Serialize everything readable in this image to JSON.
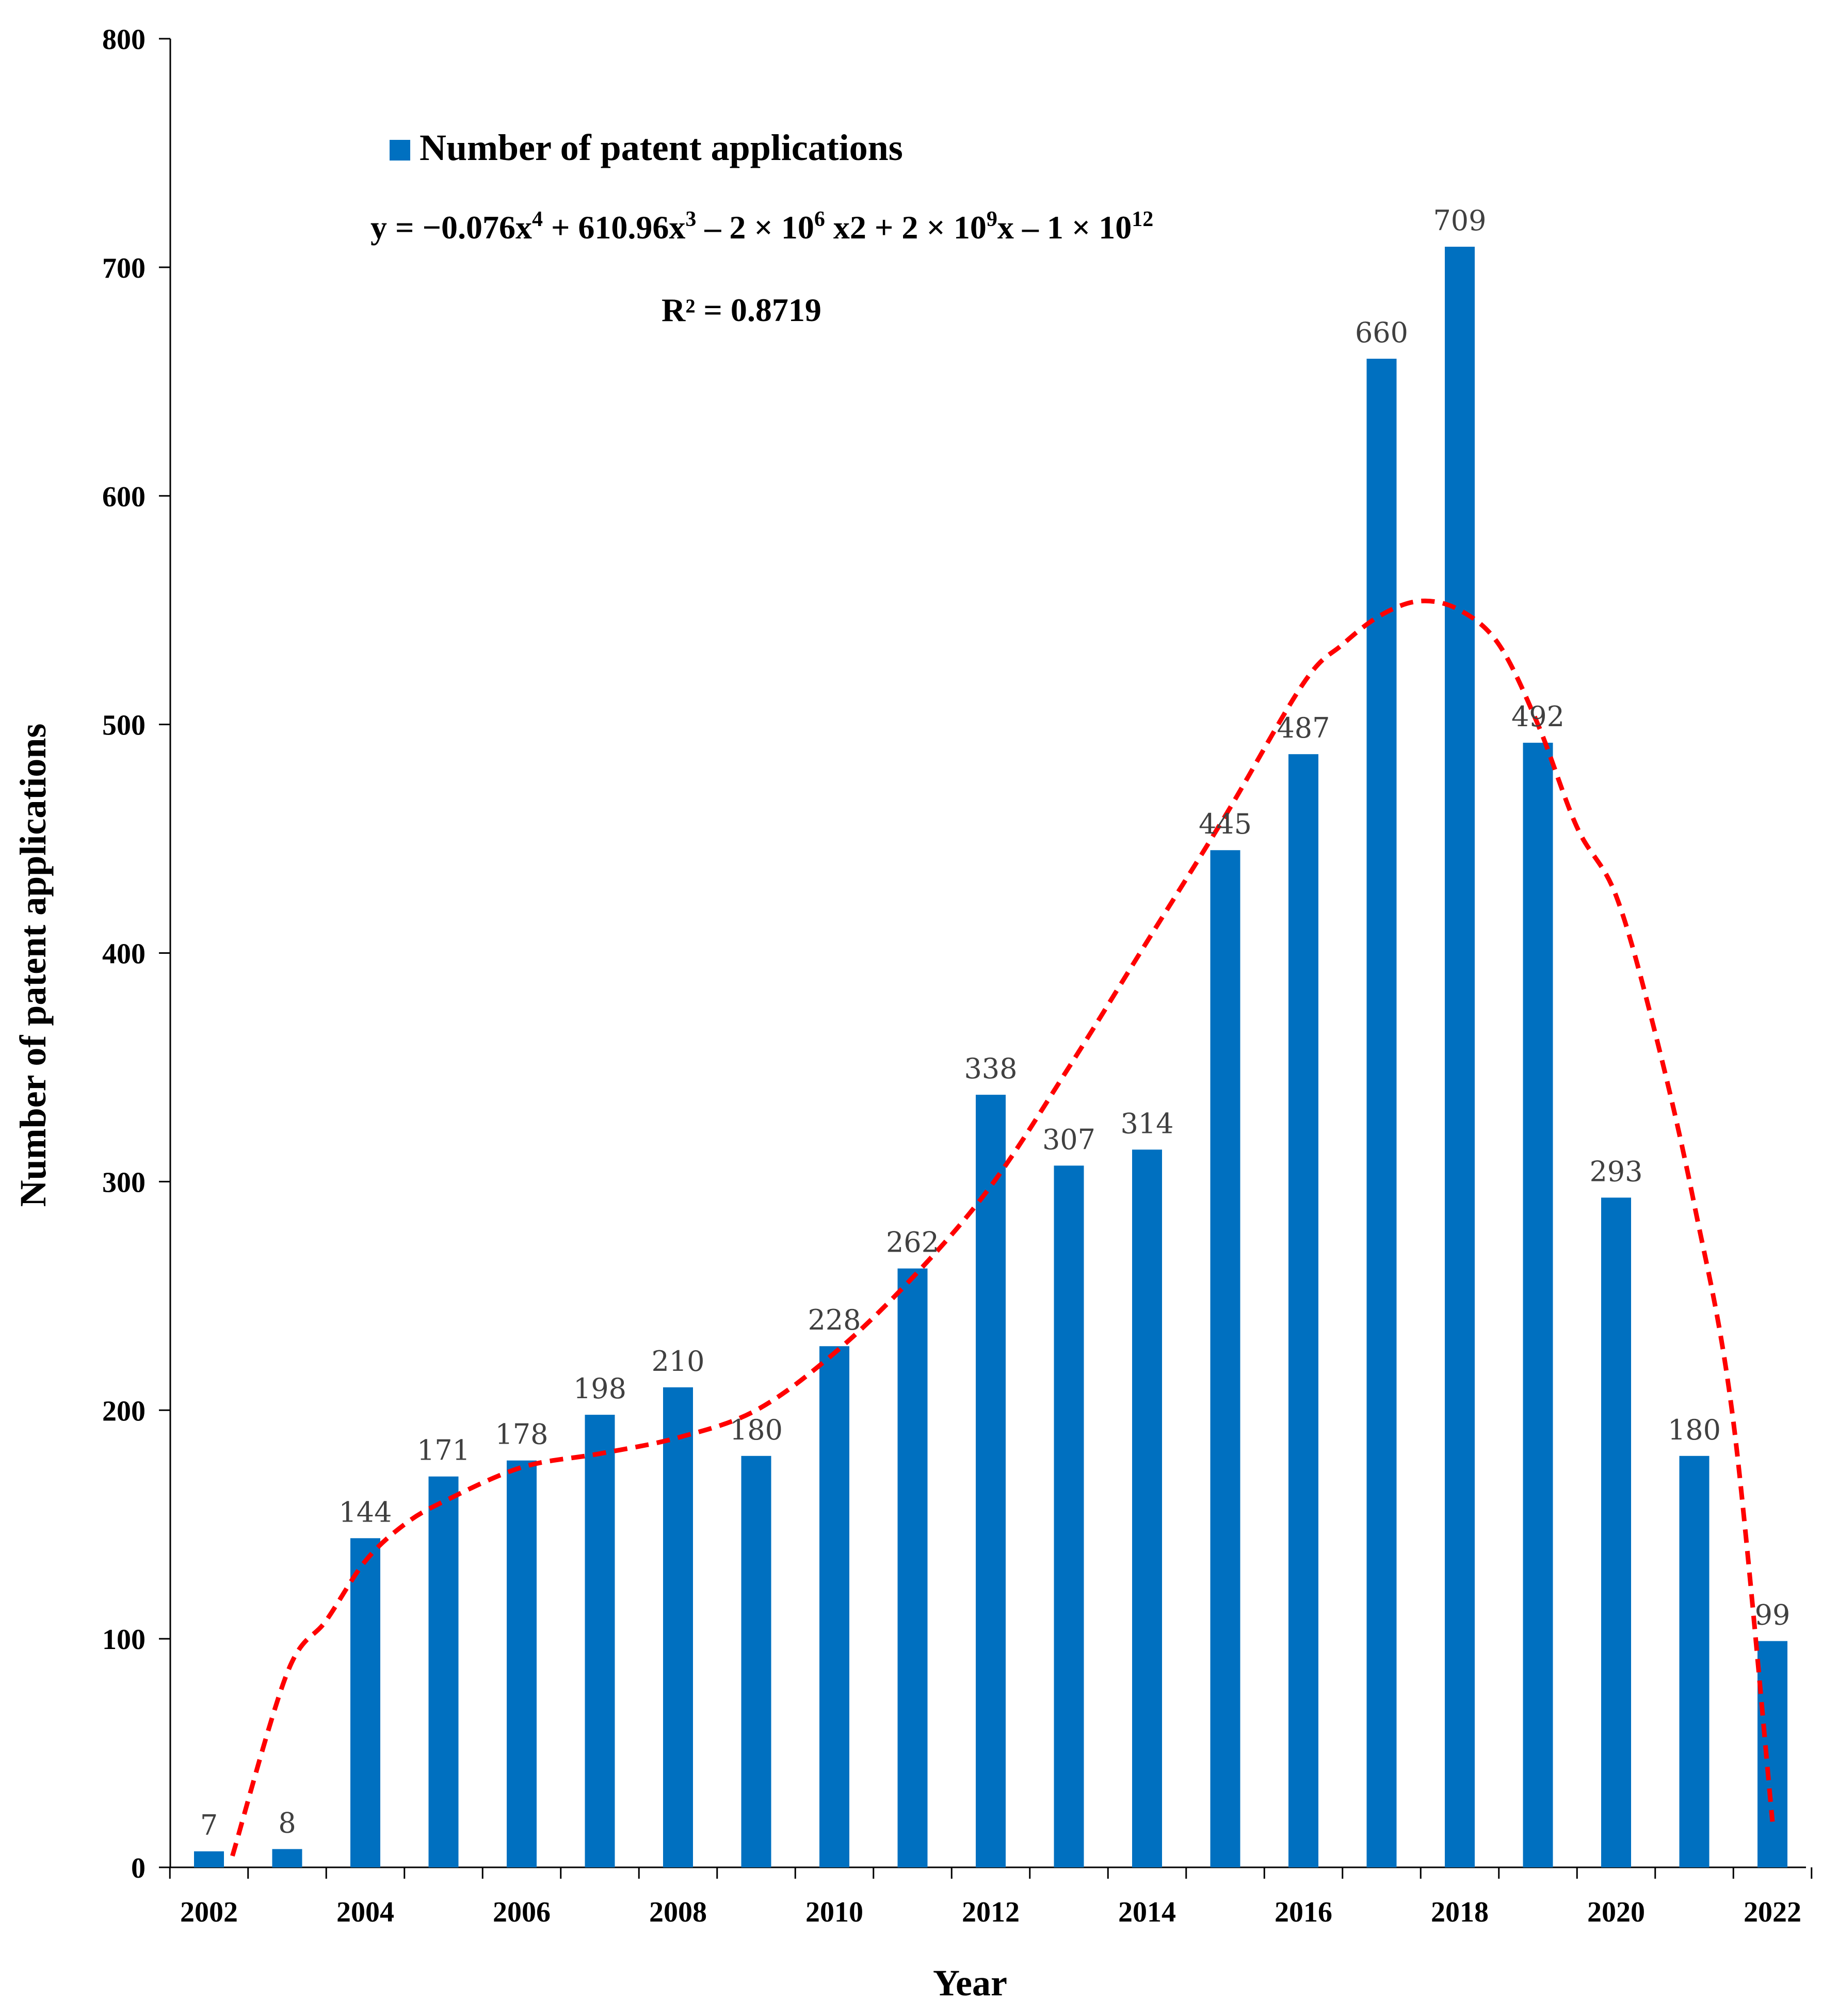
{
  "chart_data": {
    "type": "bar",
    "categories": [
      "2002",
      "2003",
      "2004",
      "2005",
      "2006",
      "2007",
      "2008",
      "2009",
      "2010",
      "2011",
      "2012",
      "2013",
      "2014",
      "2015",
      "2016",
      "2017",
      "2018",
      "2019",
      "2020",
      "2021",
      "2022"
    ],
    "values": [
      7,
      8,
      144,
      171,
      178,
      198,
      210,
      180,
      228,
      262,
      338,
      307,
      314,
      445,
      487,
      660,
      709,
      492,
      293,
      180,
      99
    ],
    "x_tick_labels": [
      "2002",
      "2004",
      "2006",
      "2008",
      "2010",
      "2012",
      "2014",
      "2016",
      "2018",
      "2020",
      "2022"
    ],
    "y_ticks": [
      0,
      100,
      200,
      300,
      400,
      500,
      600,
      700,
      800
    ],
    "ylim": [
      0,
      800
    ],
    "xlabel": "Year",
    "ylabel": "Number of patent applications",
    "legend": {
      "label": "Number of patent applications",
      "placement": "top-left"
    },
    "bar_color": "#0070C0",
    "trendline": {
      "type": "polynomial",
      "order": 4,
      "color": "#FF0000",
      "style": "dashed",
      "equation": {
        "y": "y",
        "eq": "=",
        "t1": "−0.076x",
        "p1": "4",
        "t2": " + 610.96x",
        "p2": "3",
        "t3": " – 2 × 10",
        "p3": "6",
        "t4": " x2 + 2 × 10",
        "p4": "9",
        "t5": "x – 1 × 10",
        "p5": "12"
      },
      "r_squared": "R² = 0.8719",
      "points": [
        [
          2002.3,
          5
        ],
        [
          2003,
          85
        ],
        [
          2003.5,
          108
        ],
        [
          2004,
          134
        ],
        [
          2004.5,
          150
        ],
        [
          2005,
          160
        ],
        [
          2006,
          175
        ],
        [
          2007,
          181
        ],
        [
          2008,
          188
        ],
        [
          2009,
          200
        ],
        [
          2010,
          225
        ],
        [
          2011,
          258
        ],
        [
          2012,
          298
        ],
        [
          2013,
          350
        ],
        [
          2014,
          405
        ],
        [
          2015,
          460
        ],
        [
          2016,
          518
        ],
        [
          2016.5,
          535
        ],
        [
          2017,
          548
        ],
        [
          2017.5,
          554
        ],
        [
          2018,
          550
        ],
        [
          2018.5,
          535
        ],
        [
          2019,
          500
        ],
        [
          2019.5,
          455
        ],
        [
          2020,
          425
        ],
        [
          2020.5,
          365
        ],
        [
          2021,
          290
        ],
        [
          2021.5,
          195
        ],
        [
          2022,
          20
        ]
      ]
    }
  }
}
